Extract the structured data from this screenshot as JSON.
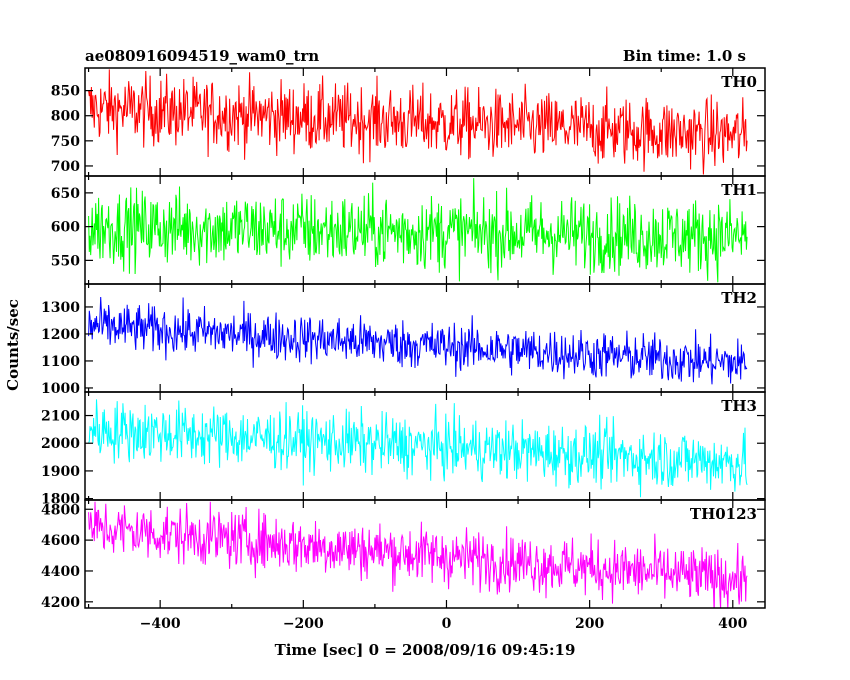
{
  "header": {
    "title": "ae080916094519_wam0_trn",
    "bin_time": "Bin time: 1.0 s"
  },
  "axes": {
    "ylabel": "Counts/sec",
    "xlabel": "Time [sec] 0 = 2008/09/16 09:45:19"
  },
  "chart_data": {
    "type": "line",
    "title": "ae080916094519_wam0_trn",
    "xlabel": "Time [sec] 0 = 2008/09/16 09:45:19",
    "ylabel": "Counts/sec",
    "xlim": [
      -505,
      445
    ],
    "x_range_data": [
      -500,
      420
    ],
    "x_ticks": [
      -400,
      -200,
      0,
      200,
      400
    ],
    "x_tick_labels": [
      "−400",
      "−200",
      "0",
      "200",
      "400"
    ],
    "bin_time_s": 1.0,
    "grid": false,
    "panels": [
      {
        "name": "TH0",
        "color": "#ff0000",
        "ylim": [
          680,
          895
        ],
        "yticks": [
          700,
          750,
          800,
          850
        ],
        "trend_start": 815,
        "trend_end": 760,
        "noise": 35
      },
      {
        "name": "TH1",
        "color": "#00ff00",
        "ylim": [
          515,
          675
        ],
        "yticks": [
          550,
          600,
          650
        ],
        "trend_start": 600,
        "trend_end": 585,
        "noise": 28
      },
      {
        "name": "TH2",
        "color": "#0000ff",
        "ylim": [
          985,
          1385
        ],
        "yticks": [
          1000,
          1100,
          1200,
          1300
        ],
        "trend_start": 1230,
        "trend_end": 1090,
        "noise": 45
      },
      {
        "name": "TH3",
        "color": "#00ffff",
        "ylim": [
          1795,
          2185
        ],
        "yticks": [
          1800,
          1900,
          2000,
          2100
        ],
        "trend_start": 2050,
        "trend_end": 1930,
        "noise": 55
      },
      {
        "name": "TH0123",
        "color": "#ff00ff",
        "ylim": [
          4160,
          4860
        ],
        "yticks": [
          4200,
          4400,
          4600,
          4800
        ],
        "trend_start": 4680,
        "trend_end": 4340,
        "noise": 95
      }
    ]
  }
}
